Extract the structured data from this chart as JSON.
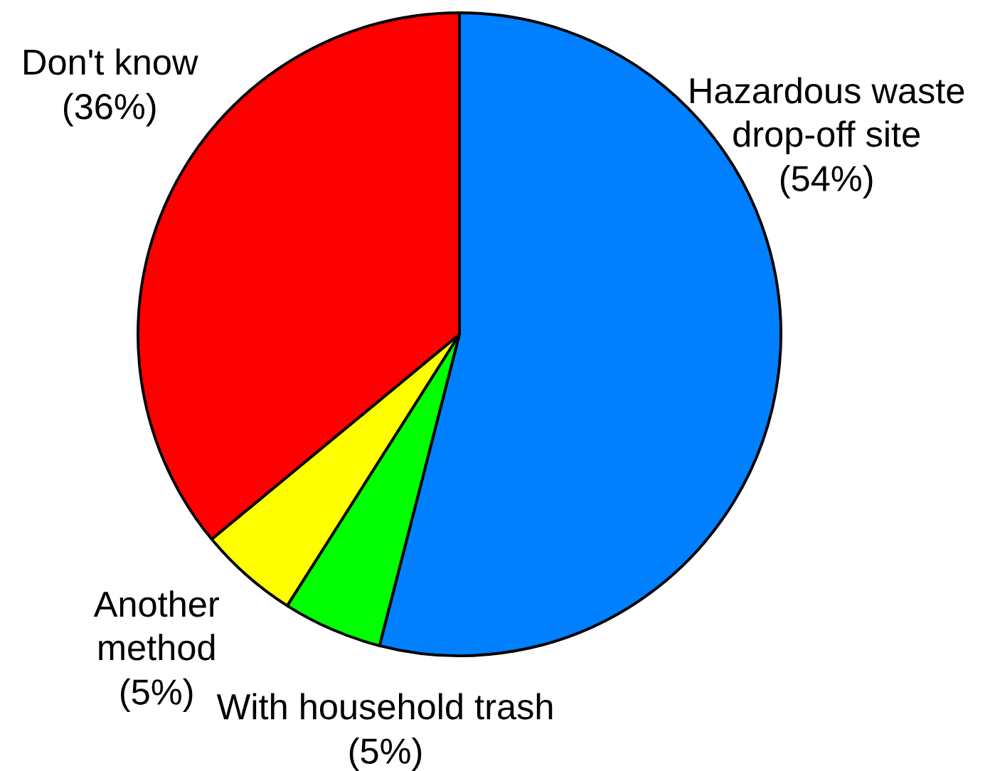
{
  "chart_data": {
    "type": "pie",
    "categories": [
      "Hazardous waste\ndrop-off site",
      "With household trash",
      "Another\nmethod",
      "Don't know"
    ],
    "values": [
      54,
      5,
      5,
      36
    ],
    "colors": [
      "#0080ff",
      "#00ff00",
      "#ffff00",
      "#ff0000"
    ],
    "value_labels": [
      "(54%)",
      "(5%)",
      "(5%)",
      "(36%)"
    ]
  }
}
